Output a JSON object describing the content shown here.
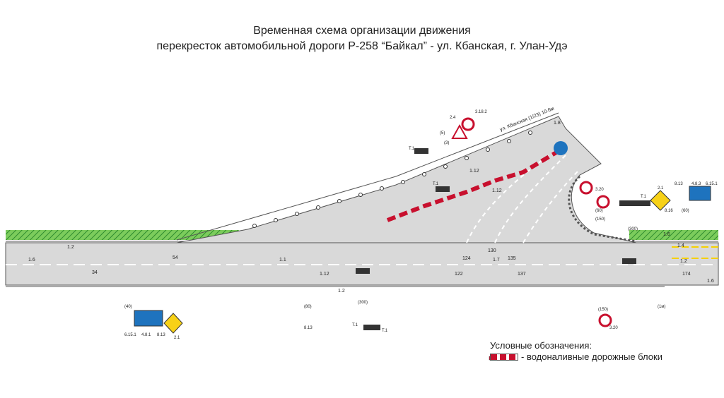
{
  "title": {
    "line1": "Временная схема организации движения",
    "line2": "перекресток автомобильной дороги Р-258 “Байкал” - ул. Кбанская, г. Улан-Удэ"
  },
  "legend": {
    "heading": "Условные обозначения:",
    "item_label": "- водоналивные дорожные блоки",
    "item_color": "#c8102e"
  },
  "colors": {
    "road": "#d9d9d9",
    "green": "#4caf50",
    "barrier_red": "#c8102e",
    "sign_blue": "#1e73be",
    "sign_yellow": "#f7d117",
    "marking_yellow": "#f5d000"
  },
  "road_labels": {
    "street_caption": "ул. Кбанская (1/23) 10.6м",
    "main_marks": [
      "1.6",
      "1.2",
      "34",
      "54",
      "1.1",
      "1.12",
      "1.2",
      "122",
      "124",
      "130",
      "135",
      "1.7",
      "137",
      "174",
      "1.4",
      "1.2",
      "1.6"
    ],
    "side_marks": [
      "1.12",
      "1.12",
      "1.6",
      "1.8"
    ]
  },
  "signs": {
    "left_bottom": [
      "6.15.1",
      "4.8.1",
      "8.13",
      "2.1",
      "(40)"
    ],
    "left_bottom_2": [
      "8.13",
      "(80)",
      "(300)"
    ],
    "right_top": [
      "2.1",
      "8.13",
      "4.8.3",
      "6.15.1",
      "3.20",
      "(60)",
      "(150)",
      "8.16",
      "(60)",
      "(300)"
    ],
    "upper_ramp": [
      "2.4",
      "3.18.2",
      "(5)",
      "(3)"
    ],
    "right_bottom": [
      "3.20",
      "(150)",
      "(1м)"
    ],
    "lights": [
      "Т.1",
      "Т.1",
      "Т.1",
      "Т.1",
      "Т.1"
    ]
  }
}
